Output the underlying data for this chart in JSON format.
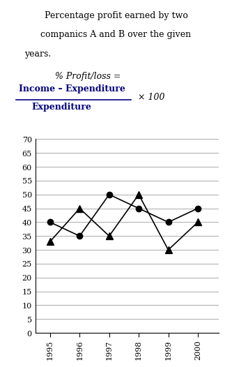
{
  "title_lines": [
    "Percentage profit earned by two",
    "companics A and B over the given",
    "years."
  ],
  "formula_line1": "% Profit/loss =",
  "formula_numerator": "Income – Expenditure",
  "formula_denominator": "Expenditure",
  "formula_multiplier": "× 100",
  "years": [
    1995,
    1996,
    1997,
    1998,
    1999,
    2000
  ],
  "company_A": [
    40,
    35,
    50,
    45,
    40,
    45
  ],
  "company_B": [
    33,
    45,
    35,
    50,
    30,
    40
  ],
  "ylim": [
    0,
    70
  ],
  "yticks": [
    0,
    5,
    10,
    15,
    20,
    25,
    30,
    35,
    40,
    45,
    50,
    55,
    60,
    65,
    70
  ],
  "color_A": "#000000",
  "color_B": "#000000",
  "background": "#ffffff",
  "grid_color": "#aaaaaa"
}
